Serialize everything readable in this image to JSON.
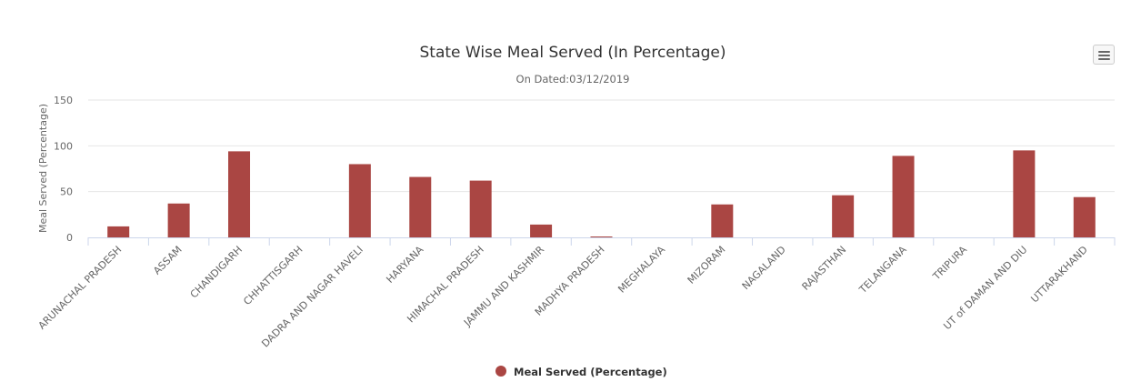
{
  "chart_data": {
    "type": "bar",
    "title": "State Wise Meal Served (In Percentage)",
    "subtitle": "On Dated:03/12/2019",
    "xlabel": "",
    "ylabel": "Meal Served (Percentage)",
    "ylim": [
      0,
      150
    ],
    "yticks": [
      0,
      50,
      100,
      150
    ],
    "grid": true,
    "legend_position": "bottom-center",
    "categories": [
      "ARUNACHAL PRADESH",
      "ASSAM",
      "CHANDIGARH",
      "CHHATTISGARH",
      "DADRA AND NAGAR HAVELI",
      "HARYANA",
      "HIMACHAL PRADESH",
      "JAMMU AND KASHMIR",
      "MADHYA PRADESH",
      "MEGHALAYA",
      "MIZORAM",
      "NAGALAND",
      "RAJASTHAN",
      "TELANGANA",
      "TRIPURA",
      "UT of DAMAN AND DIU",
      "UTTARAKHAND"
    ],
    "series": [
      {
        "name": "Meal Served (Percentage)",
        "color": "#aa4643",
        "values": [
          12,
          37,
          94,
          0,
          80,
          66,
          62,
          14,
          1,
          0,
          36,
          0,
          46,
          89,
          0,
          95,
          44
        ]
      }
    ]
  },
  "toolbar": {
    "menu_icon": "hamburger-menu-icon"
  },
  "colors": {
    "grid": "#e6e6e6",
    "axis": "#ccd6eb",
    "bar": "#aa4643"
  }
}
